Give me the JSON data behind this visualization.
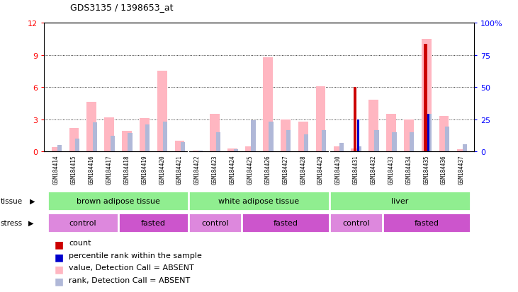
{
  "title": "GDS3135 / 1398653_at",
  "samples": [
    "GSM184414",
    "GSM184415",
    "GSM184416",
    "GSM184417",
    "GSM184418",
    "GSM184419",
    "GSM184420",
    "GSM184421",
    "GSM184422",
    "GSM184423",
    "GSM184424",
    "GSM184425",
    "GSM184426",
    "GSM184427",
    "GSM184428",
    "GSM184429",
    "GSM184430",
    "GSM184431",
    "GSM184432",
    "GSM184433",
    "GSM184434",
    "GSM184435",
    "GSM184436",
    "GSM184437"
  ],
  "value_absent": [
    0.4,
    2.2,
    4.6,
    3.2,
    1.9,
    3.1,
    7.5,
    1.0,
    0.1,
    3.5,
    0.3,
    0.5,
    8.8,
    3.0,
    2.8,
    6.1,
    0.5,
    0.3,
    4.8,
    3.5,
    3.0,
    10.5,
    3.3,
    0.2
  ],
  "rank_absent": [
    0.6,
    1.2,
    2.7,
    1.5,
    1.7,
    2.5,
    2.8,
    0.9,
    0.1,
    1.8,
    0.2,
    2.9,
    2.8,
    2.0,
    1.6,
    2.0,
    0.8,
    0.5,
    2.0,
    1.8,
    1.8,
    3.5,
    2.3,
    0.7
  ],
  "count": [
    0,
    0,
    0,
    0,
    0,
    0,
    0,
    0,
    0,
    0,
    0,
    0,
    0,
    0,
    0,
    0,
    0,
    6.0,
    0,
    0,
    0,
    10.0,
    0,
    0
  ],
  "percentile": [
    0,
    0,
    0,
    0,
    0,
    0,
    0,
    0,
    0,
    0,
    0,
    0,
    0,
    0,
    0,
    0,
    0,
    3.0,
    0,
    0,
    0,
    3.5,
    0,
    0
  ],
  "ylim_left": [
    0,
    12
  ],
  "ylim_right": [
    0,
    100
  ],
  "yticks_left": [
    0,
    3,
    6,
    9,
    12
  ],
  "yticks_right": [
    0,
    25,
    50,
    75,
    100
  ],
  "ytick_labels_right": [
    "0",
    "25",
    "50",
    "75",
    "100%"
  ],
  "tissue_boundaries": [
    0,
    8,
    16,
    24
  ],
  "tissue_labels": [
    "brown adipose tissue",
    "white adipose tissue",
    "liver"
  ],
  "tissue_color": "#90EE90",
  "stress_boundaries": [
    0,
    4,
    8,
    11,
    16,
    19,
    24
  ],
  "stress_labels": [
    "control",
    "fasted",
    "control",
    "fasted",
    "control",
    "fasted"
  ],
  "stress_color_light": "#DD88DD",
  "stress_color_dark": "#CC55CC",
  "value_absent_color": "#FFB6C1",
  "rank_absent_color": "#B0B8D8",
  "count_color": "#CC0000",
  "percentile_color": "#0000CC",
  "plot_bg": "#FFFFFF",
  "xticklabel_bg": "#D0D0D0",
  "grid_color": "#000000"
}
